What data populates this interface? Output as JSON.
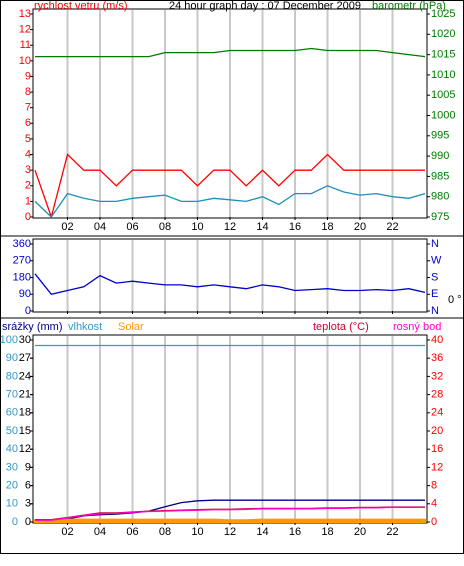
{
  "chart_data": [
    {
      "type": "line",
      "title": "24 hour graph day : 07 December 2009",
      "ylabel": "rychlost vetru (m/s)",
      "y2label": "barometr (hPa)",
      "x": [
        0,
        1,
        2,
        3,
        4,
        5,
        6,
        7,
        8,
        9,
        10,
        11,
        12,
        13,
        14,
        15,
        16,
        17,
        18,
        19,
        20,
        21,
        22,
        23,
        24
      ],
      "xlim": [
        0,
        24
      ],
      "xticks": [
        {
          "value": 2,
          "label": "02"
        },
        {
          "value": 4,
          "label": "04"
        },
        {
          "value": 6,
          "label": "06"
        },
        {
          "value": 8,
          "label": "08"
        },
        {
          "value": 10,
          "label": "10"
        },
        {
          "value": 12,
          "label": "12"
        },
        {
          "value": 14,
          "label": "14"
        },
        {
          "value": 16,
          "label": "16"
        },
        {
          "value": 18,
          "label": "18"
        },
        {
          "value": 20,
          "label": "20"
        },
        {
          "value": 22,
          "label": "22"
        }
      ],
      "ylim": [
        0,
        13
      ],
      "yticks": [
        0,
        1,
        2,
        3,
        4,
        5,
        6,
        7,
        8,
        9,
        10,
        11,
        12,
        13
      ],
      "y2lim": [
        975,
        1025
      ],
      "y2ticks": [
        975,
        980,
        985,
        990,
        995,
        1000,
        1005,
        1010,
        1015,
        1020,
        1025
      ],
      "grid": true,
      "series": [
        {
          "color": "#ff0000",
          "values": [
            3,
            0,
            4,
            3,
            3,
            2,
            3,
            3,
            3,
            3,
            2,
            3,
            3,
            2,
            3,
            2,
            3,
            3,
            4,
            3,
            3,
            3,
            3,
            3,
            3
          ]
        },
        {
          "color": "#1f8fb8",
          "values": [
            1,
            0,
            1.5,
            1.2,
            1,
            1,
            1.2,
            1.3,
            1.4,
            1,
            1,
            1.2,
            1.1,
            1,
            1.3,
            0.8,
            1.5,
            1.5,
            2,
            1.6,
            1.4,
            1.5,
            1.3,
            1.2,
            1.5
          ]
        },
        {
          "color": "#007a00",
          "axis": "y2",
          "values": [
            1014.5,
            1014.5,
            1014.5,
            1014.5,
            1014.5,
            1014.5,
            1014.5,
            1014.5,
            1015.5,
            1015.5,
            1015.5,
            1015.5,
            1016,
            1016,
            1016,
            1016,
            1016,
            1016.5,
            1016,
            1016,
            1016,
            1016,
            1015.5,
            1015,
            1014.5
          ]
        }
      ]
    },
    {
      "type": "line",
      "annotation": "0 °",
      "x": [
        0,
        1,
        2,
        3,
        4,
        5,
        6,
        7,
        8,
        9,
        10,
        11,
        12,
        13,
        14,
        15,
        16,
        17,
        18,
        19,
        20,
        21,
        22,
        23,
        24
      ],
      "xlim": [
        0,
        24
      ],
      "xticks": [
        {
          "value": 2,
          "label": "02"
        },
        {
          "value": 4,
          "label": "04"
        },
        {
          "value": 6,
          "label": "06"
        },
        {
          "value": 8,
          "label": "08"
        },
        {
          "value": 10,
          "label": "10"
        },
        {
          "value": 12,
          "label": "12"
        },
        {
          "value": 14,
          "label": "14"
        },
        {
          "value": 16,
          "label": "16"
        },
        {
          "value": 18,
          "label": "18"
        },
        {
          "value": 20,
          "label": "20"
        },
        {
          "value": 22,
          "label": "22"
        }
      ],
      "ylim": [
        0,
        360
      ],
      "yticks": [
        0,
        90,
        180,
        270,
        360
      ],
      "y2lim": [
        0,
        360
      ],
      "y2ticks": [
        {
          "value": 0,
          "label": "N"
        },
        {
          "value": 90,
          "label": "E"
        },
        {
          "value": 180,
          "label": "S"
        },
        {
          "value": 270,
          "label": "W"
        },
        {
          "value": 360,
          "label": "N"
        }
      ],
      "grid": true,
      "series": [
        {
          "color": "#0000cc",
          "values": [
            200,
            90,
            110,
            130,
            190,
            150,
            160,
            150,
            140,
            140,
            130,
            140,
            130,
            120,
            140,
            130,
            110,
            115,
            120,
            110,
            110,
            115,
            110,
            120,
            100
          ]
        }
      ]
    },
    {
      "type": "line",
      "x": [
        0,
        1,
        2,
        3,
        4,
        5,
        6,
        7,
        8,
        9,
        10,
        11,
        12,
        13,
        14,
        15,
        16,
        17,
        18,
        19,
        20,
        21,
        22,
        23,
        24
      ],
      "xlim": [
        0,
        24
      ],
      "xticks": [
        {
          "value": 2,
          "label": "02"
        },
        {
          "value": 4,
          "label": "04"
        },
        {
          "value": 6,
          "label": "06"
        },
        {
          "value": 8,
          "label": "08"
        },
        {
          "value": 10,
          "label": "10"
        },
        {
          "value": 12,
          "label": "12"
        },
        {
          "value": 14,
          "label": "14"
        },
        {
          "value": 16,
          "label": "16"
        },
        {
          "value": 18,
          "label": "18"
        },
        {
          "value": 20,
          "label": "20"
        },
        {
          "value": 22,
          "label": "22"
        }
      ],
      "ylim": [
        0,
        30
      ],
      "yticks": [
        0,
        3,
        6,
        9,
        12,
        15,
        18,
        21,
        24,
        27,
        30
      ],
      "y3lim": [
        0,
        100
      ],
      "y3ticks": [
        0,
        10,
        20,
        30,
        40,
        50,
        60,
        70,
        80,
        90,
        100
      ],
      "y2lim": [
        0,
        40
      ],
      "y2ticks": [
        0,
        4,
        8,
        12,
        16,
        20,
        24,
        28,
        32,
        36,
        40
      ],
      "grid": true,
      "series": [
        {
          "name": "srážky (mm)",
          "color": "#000080",
          "values": [
            0,
            0,
            0.5,
            1,
            1.2,
            1.3,
            1.5,
            1.8,
            2.5,
            3.2,
            3.5,
            3.6,
            3.6,
            3.6,
            3.6,
            3.6,
            3.6,
            3.6,
            3.6,
            3.6,
            3.6,
            3.6,
            3.6,
            3.6,
            3.6
          ]
        },
        {
          "name": "vlhkost",
          "color": "#3399cc",
          "axis": "y3",
          "values": [
            97,
            97,
            97,
            97,
            97,
            97,
            97,
            97,
            97,
            97,
            97,
            97,
            97,
            97,
            97,
            97,
            97,
            97,
            97,
            97,
            97,
            97,
            97,
            97,
            97
          ]
        },
        {
          "name": "Solar",
          "color": "#ff9900",
          "area": true,
          "values": [
            0.3,
            0.3,
            0.4,
            0.4,
            0.4,
            0.4,
            0.4,
            0.4,
            0.4,
            0.4,
            0.4,
            0.4,
            0.3,
            0.3,
            0.4,
            0.4,
            0.4,
            0.4,
            0.4,
            0.4,
            0.4,
            0.4,
            0.4,
            0.4,
            0.4
          ]
        },
        {
          "name": "teplota (°C)",
          "color": "#cc0033",
          "axis": "y2",
          "values": [
            0.5,
            0.5,
            1,
            1.5,
            2,
            2,
            2.2,
            2.4,
            2.5,
            2.6,
            2.7,
            2.8,
            2.8,
            2.9,
            3,
            3,
            3,
            3,
            3.1,
            3.1,
            3.2,
            3.2,
            3.3,
            3.3,
            3.3
          ]
        },
        {
          "name": "rosný bod",
          "color": "#ff00cc",
          "axis": "y2",
          "values": [
            0.4,
            0.4,
            0.9,
            1.4,
            1.8,
            1.9,
            2.1,
            2.3,
            2.4,
            2.5,
            2.6,
            2.7,
            2.7,
            2.8,
            2.9,
            2.9,
            2.9,
            2.9,
            3,
            3,
            3.1,
            3.1,
            3.2,
            3.2,
            3.2
          ]
        }
      ]
    }
  ]
}
